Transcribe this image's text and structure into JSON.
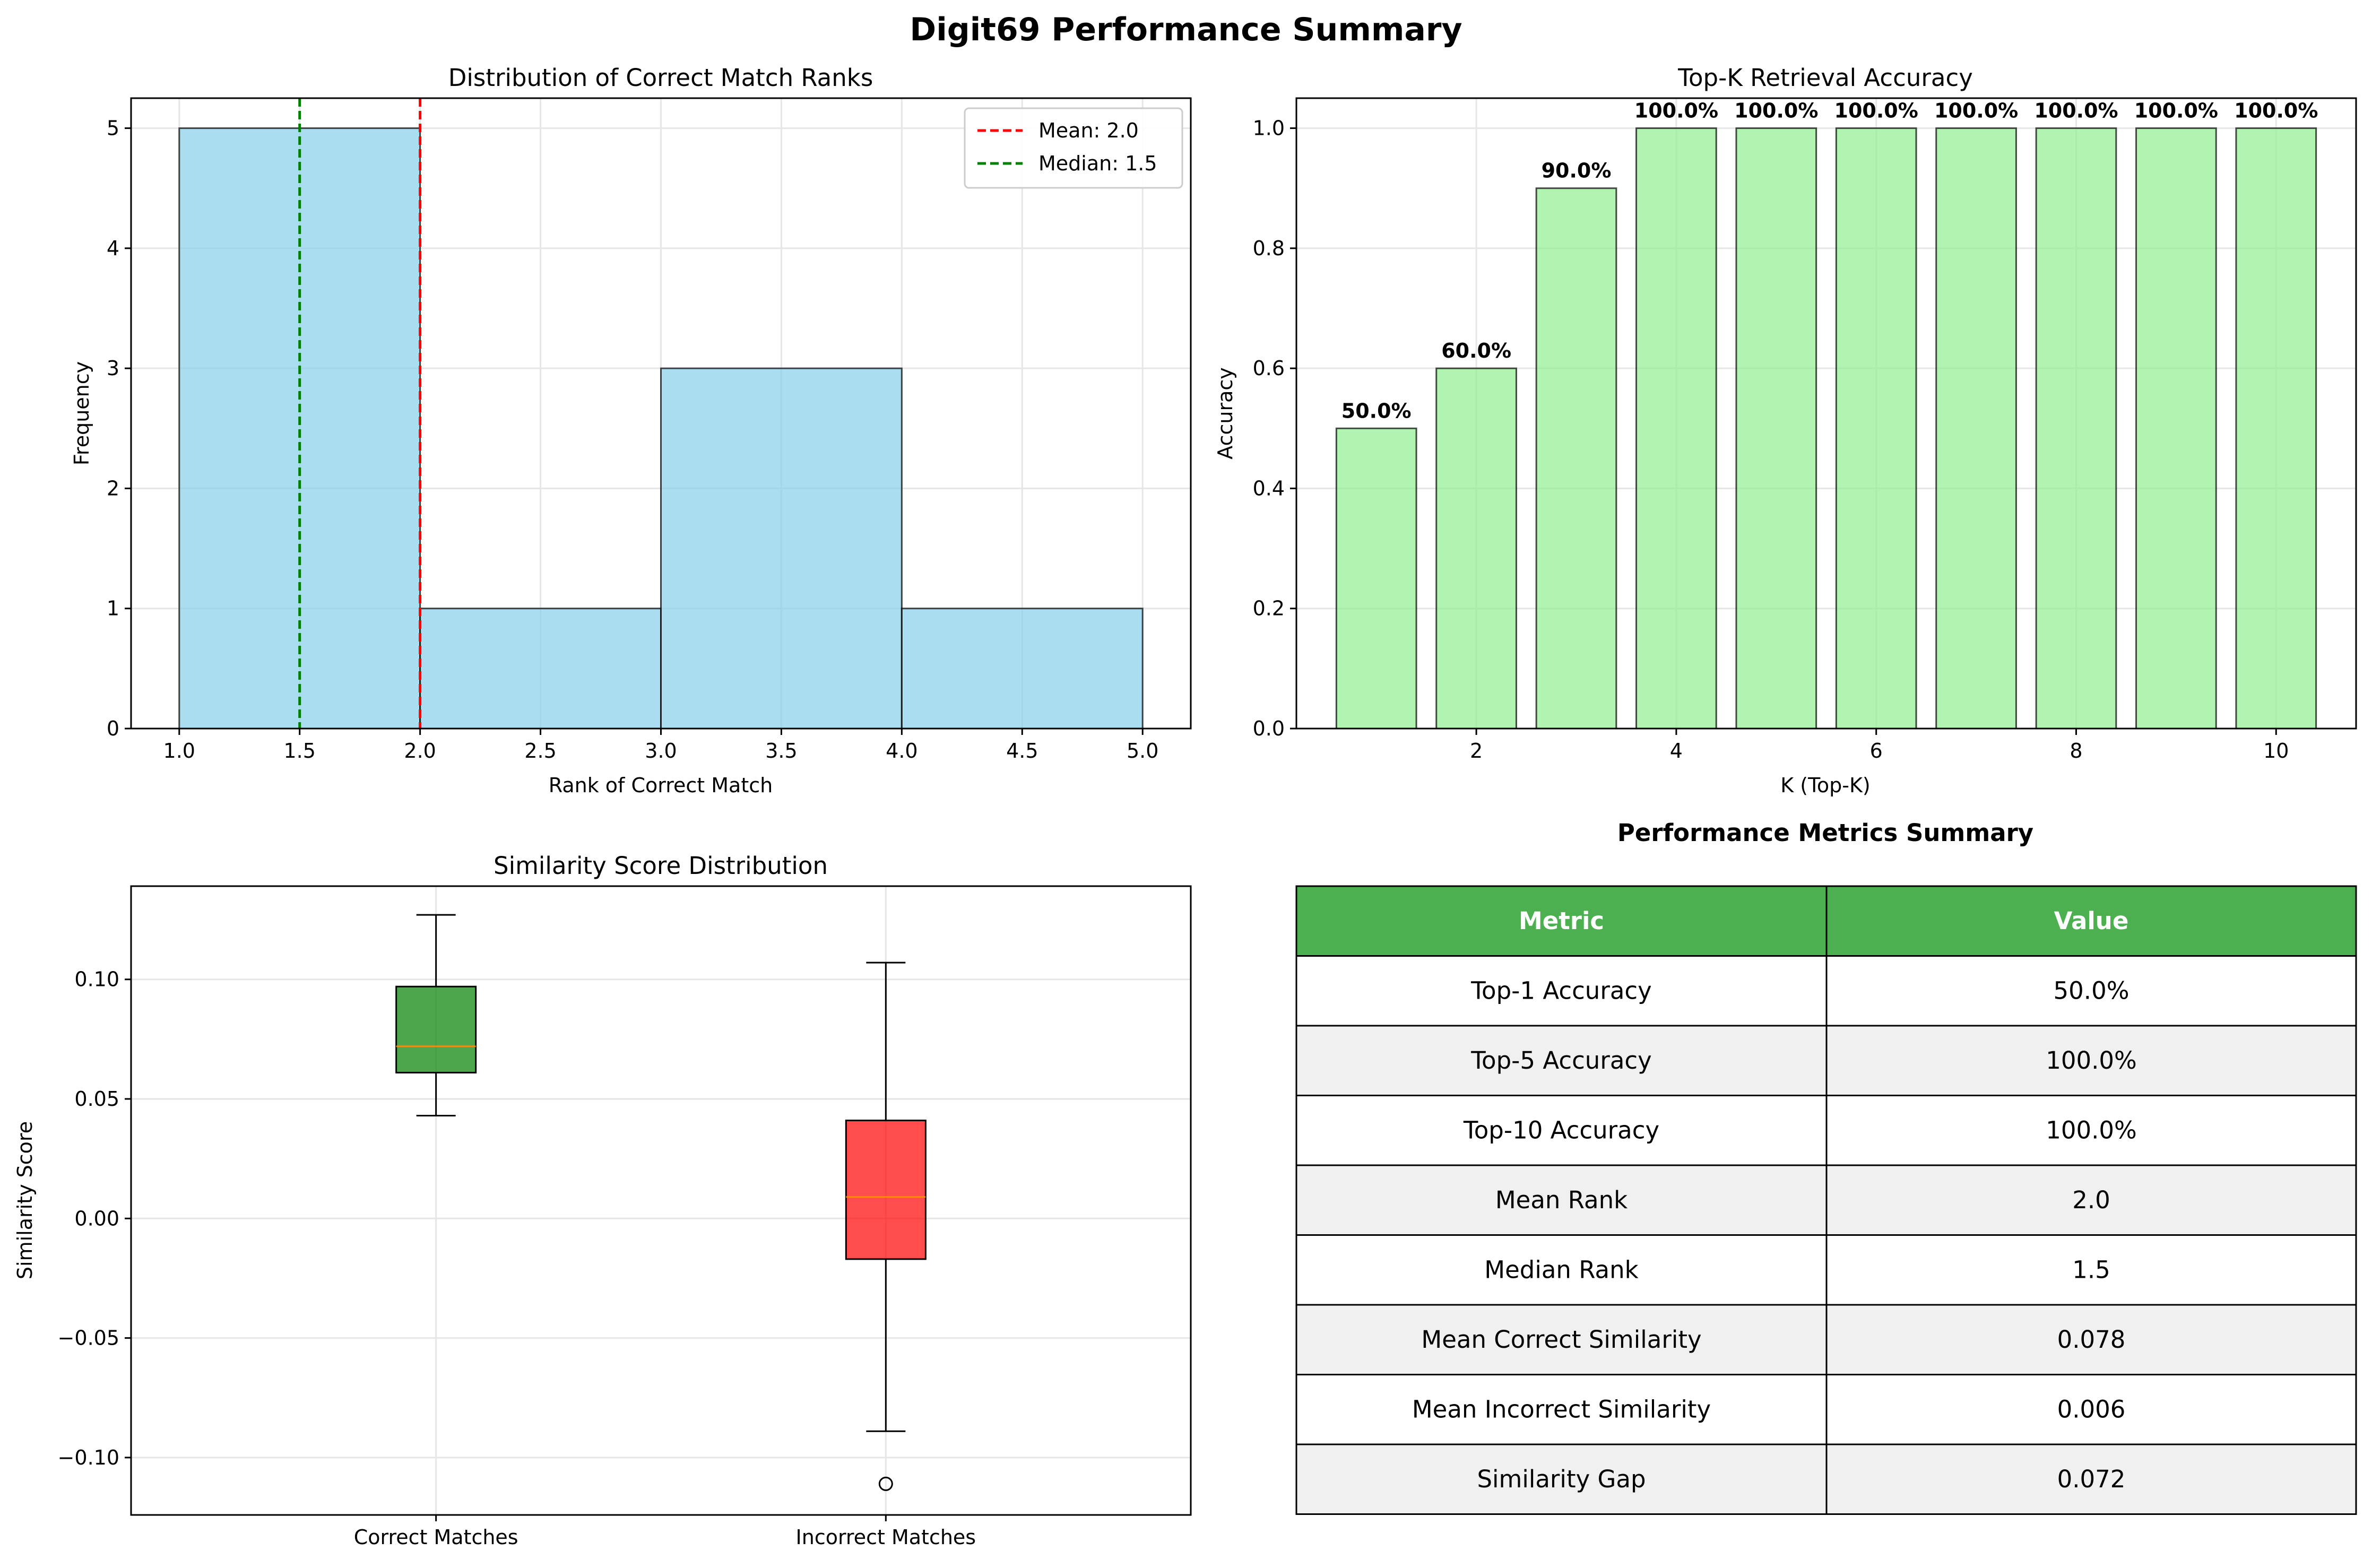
{
  "figure": {
    "title": "Digit69 Performance Summary"
  },
  "chart_data": [
    {
      "type": "bar",
      "subtype": "histogram",
      "title": "Distribution of Correct Match Ranks",
      "xlabel": "Rank of Correct Match",
      "ylabel": "Frequency",
      "xlim": [
        0.8,
        5.2
      ],
      "ylim": [
        0,
        5.25
      ],
      "xticks": [
        "1.0",
        "1.5",
        "2.0",
        "2.5",
        "3.0",
        "3.5",
        "4.0",
        "4.5",
        "5.0"
      ],
      "yticks": [
        "0",
        "1",
        "2",
        "3",
        "4",
        "5"
      ],
      "bins": [
        {
          "from": 1,
          "to": 2,
          "value": 5
        },
        {
          "from": 2,
          "to": 3,
          "value": 1
        },
        {
          "from": 3,
          "to": 4,
          "value": 3
        },
        {
          "from": 4,
          "to": 5,
          "value": 1
        }
      ],
      "bar_color": "#87ceeb",
      "reference_lines": [
        {
          "label": "Mean: 2.0",
          "x": 2.0,
          "color": "#ff0000"
        },
        {
          "label": "Median: 1.5",
          "x": 1.5,
          "color": "#008000"
        }
      ],
      "grid": true,
      "legend": "top-right"
    },
    {
      "type": "bar",
      "title": "Top-K Retrieval Accuracy",
      "xlabel": "K (Top-K)",
      "ylabel": "Accuracy",
      "xlim": [
        0.2,
        10.8
      ],
      "ylim": [
        0,
        1.05
      ],
      "xticks": [
        "2",
        "4",
        "6",
        "8",
        "10"
      ],
      "yticks": [
        "0.0",
        "0.2",
        "0.4",
        "0.6",
        "0.8",
        "1.0"
      ],
      "x": [
        1,
        2,
        3,
        4,
        5,
        6,
        7,
        8,
        9,
        10
      ],
      "values": [
        0.5,
        0.6,
        0.9,
        1.0,
        1.0,
        1.0,
        1.0,
        1.0,
        1.0,
        1.0
      ],
      "data_labels": [
        "50.0%",
        "60.0%",
        "90.0%",
        "100.0%",
        "100.0%",
        "100.0%",
        "100.0%",
        "100.0%",
        "100.0%",
        "100.0%"
      ],
      "bar_color": "#90ee90",
      "grid": true
    },
    {
      "type": "boxplot",
      "title": "Similarity Score Distribution",
      "xlabel": "",
      "ylabel": "Similarity Score",
      "ylim": [
        -0.124,
        0.139
      ],
      "yticks": [
        "0.10",
        "0.05",
        "0.00",
        "−0.05",
        "−0.10"
      ],
      "ytick_values": [
        0.1,
        0.05,
        0.0,
        -0.05,
        -0.1
      ],
      "categories": [
        "Correct Matches",
        "Incorrect Matches"
      ],
      "boxes": [
        {
          "name": "Correct Matches",
          "whisker_low": 0.043,
          "q1": 0.061,
          "median": 0.072,
          "q3": 0.097,
          "whisker_high": 0.127,
          "outliers": [],
          "color": "#008000"
        },
        {
          "name": "Incorrect Matches",
          "whisker_low": -0.089,
          "q1": -0.017,
          "median": 0.009,
          "q3": 0.041,
          "whisker_high": 0.107,
          "outliers": [
            -0.111
          ],
          "color": "#ff0000"
        }
      ],
      "grid": true
    },
    {
      "type": "table",
      "title": "Performance Metrics Summary",
      "columns": [
        "Metric",
        "Value"
      ],
      "header_color": "#4caf50",
      "rows": [
        [
          "Top-1 Accuracy",
          "50.0%"
        ],
        [
          "Top-5 Accuracy",
          "100.0%"
        ],
        [
          "Top-10 Accuracy",
          "100.0%"
        ],
        [
          "Mean Rank",
          "2.0"
        ],
        [
          "Median Rank",
          "1.5"
        ],
        [
          "Mean Correct Similarity",
          "0.078"
        ],
        [
          "Mean Incorrect Similarity",
          "0.006"
        ],
        [
          "Similarity Gap",
          "0.072"
        ]
      ]
    }
  ]
}
